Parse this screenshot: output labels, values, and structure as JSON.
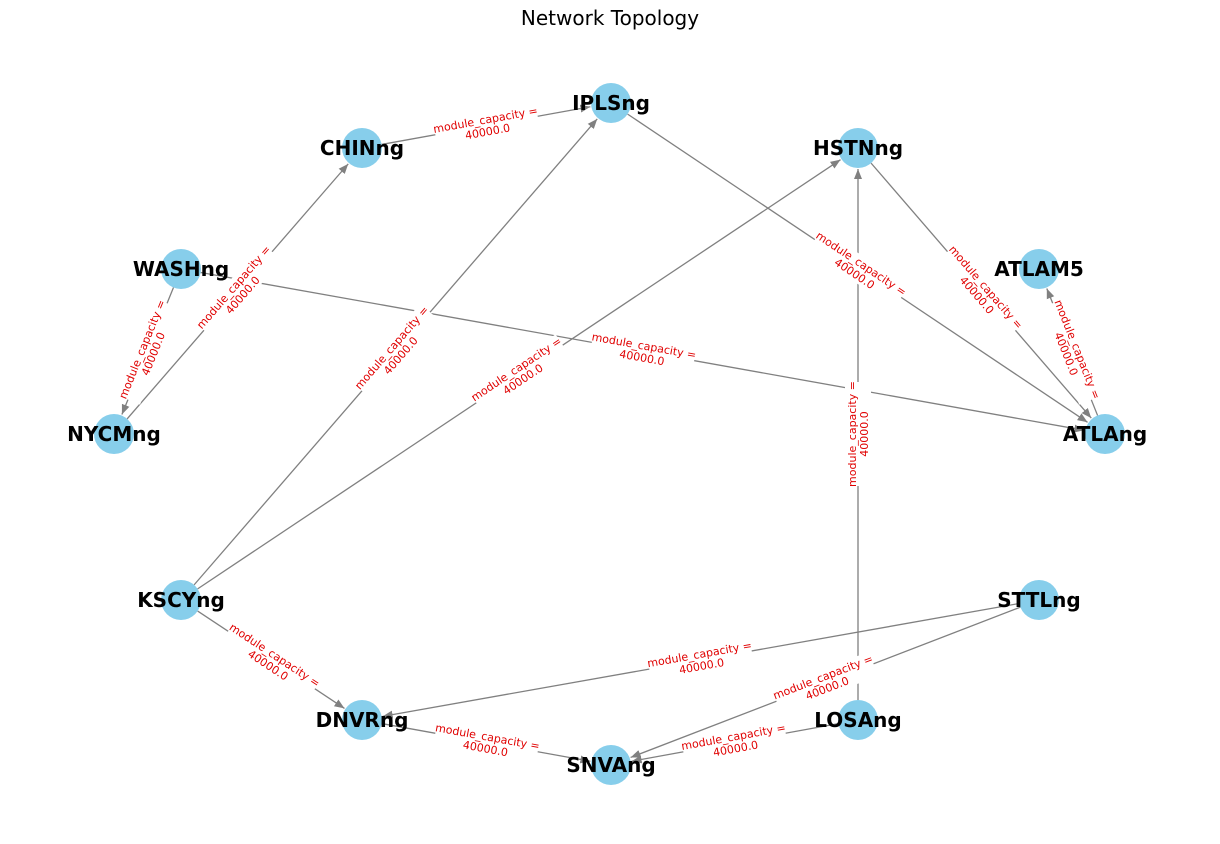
{
  "title": "Network Topology",
  "colors": {
    "node": "#87ceeb",
    "edge": "#808080",
    "edge_label": "#e00000",
    "text": "#000000"
  },
  "nodes": [
    {
      "id": "IPLSng",
      "label": "IPLSng"
    },
    {
      "id": "CHINng",
      "label": "CHINng"
    },
    {
      "id": "HSTNng",
      "label": "HSTNng"
    },
    {
      "id": "WASHng",
      "label": "WASHng"
    },
    {
      "id": "ATLAM5",
      "label": "ATLAM5"
    },
    {
      "id": "NYCMng",
      "label": "NYCMng"
    },
    {
      "id": "ATLAng",
      "label": "ATLAng"
    },
    {
      "id": "KSCYng",
      "label": "KSCYng"
    },
    {
      "id": "STTLng",
      "label": "STTLng"
    },
    {
      "id": "DNVRng",
      "label": "DNVRng"
    },
    {
      "id": "LOSAng",
      "label": "LOSAng"
    },
    {
      "id": "SNVAng",
      "label": "SNVAng"
    }
  ],
  "edges": [
    {
      "source": "CHINng",
      "target": "IPLSng",
      "label_line1": "module_capacity =",
      "label_line2": "40000.0"
    },
    {
      "source": "IPLSng",
      "target": "ATLAng",
      "label_line1": "module_capacity =",
      "label_line2": "40000.0"
    },
    {
      "source": "HSTNng",
      "target": "ATLAng",
      "label_line1": "module_capacity =",
      "label_line2": "40000.0"
    },
    {
      "source": "ATLAng",
      "target": "ATLAM5",
      "label_line1": "module_capacity =",
      "label_line2": "40000.0"
    },
    {
      "source": "WASHng",
      "target": "NYCMng",
      "label_line1": "module_capacity =",
      "label_line2": "40000.0"
    },
    {
      "source": "NYCMng",
      "target": "CHINng",
      "label_line1": "module_capacity =",
      "label_line2": "40000.0"
    },
    {
      "source": "WASHng",
      "target": "ATLAng",
      "label_line1": "module_capacity =",
      "label_line2": "40000.0"
    },
    {
      "source": "KSCYng",
      "target": "IPLSng",
      "label_line1": "module_capacity =",
      "label_line2": "40000.0"
    },
    {
      "source": "KSCYng",
      "target": "HSTNng",
      "label_line1": "module_capacity =",
      "label_line2": "40000.0"
    },
    {
      "source": "LOSAng",
      "target": "HSTNng",
      "label_line1": "module_capacity =",
      "label_line2": "40000.0"
    },
    {
      "source": "KSCYng",
      "target": "DNVRng",
      "label_line1": "module_capacity =",
      "label_line2": "40000.0"
    },
    {
      "source": "STTLng",
      "target": "DNVRng",
      "label_line1": "module_capacity =",
      "label_line2": "40000.0"
    },
    {
      "source": "STTLng",
      "target": "SNVAng",
      "label_line1": "module_capacity =",
      "label_line2": "40000.0"
    },
    {
      "source": "DNVRng",
      "target": "SNVAng",
      "label_line1": "module_capacity =",
      "label_line2": "40000.0"
    },
    {
      "source": "LOSAng",
      "target": "SNVAng",
      "label_line1": "module_capacity =",
      "label_line2": "40000.0"
    }
  ]
}
